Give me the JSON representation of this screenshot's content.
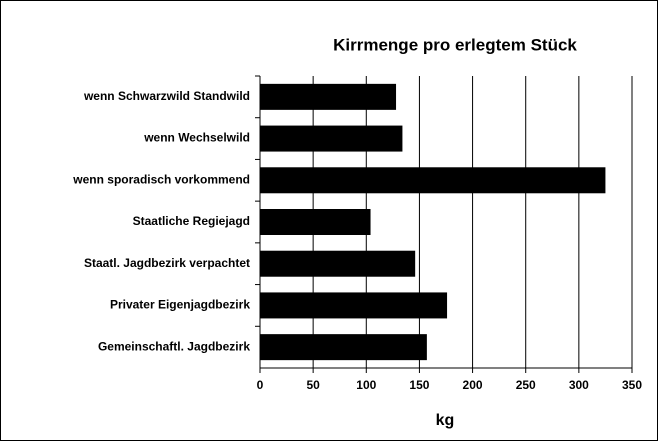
{
  "chart_data": {
    "type": "hbar",
    "title": "Kirrmenge pro erlegtem Stück",
    "x_label": "kg",
    "categories": [
      "wenn Schwarzwild Standwild",
      "wenn Wechselwild",
      "wenn sporadisch vorkommend",
      "Staatliche Regiejagd",
      "Staatl. Jagdbezirk verpachtet",
      "Privater Eigenjagdbezirk",
      "Gemeinschaftl. Jagdbezirk"
    ],
    "values": [
      128,
      134,
      325,
      104,
      146,
      176,
      157
    ],
    "color": "#000000",
    "xlim": [
      0,
      350
    ],
    "xticks": [
      0,
      50,
      100,
      150,
      200,
      250,
      300,
      350
    ],
    "grid": true
  }
}
